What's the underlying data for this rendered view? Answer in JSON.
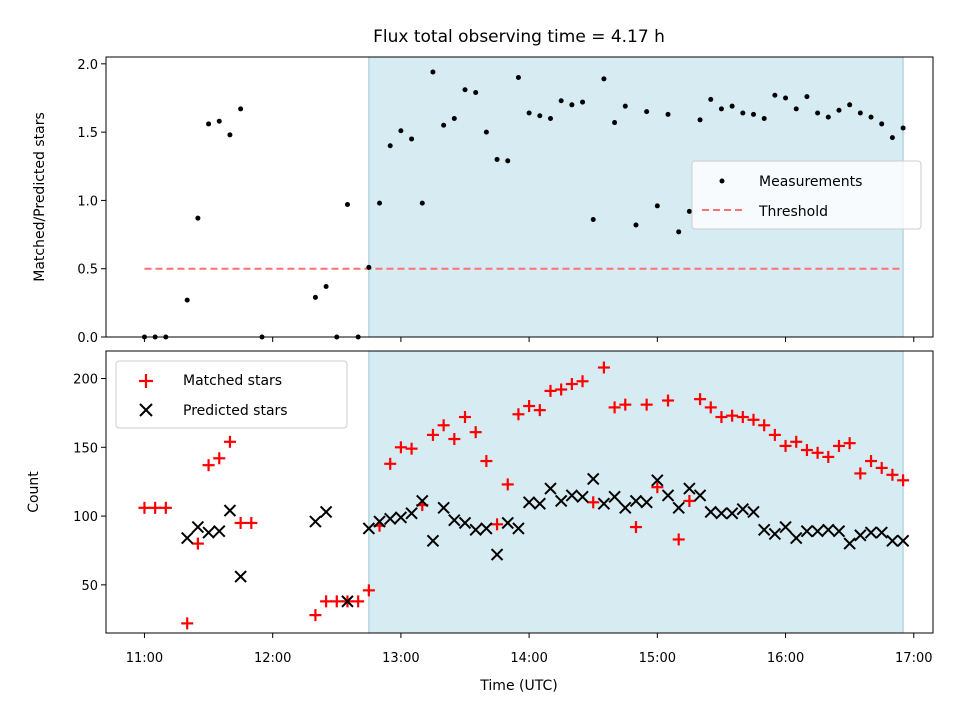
{
  "chart_data": [
    {
      "type": "scatter",
      "title": "Flux total observing time = 4.17 h",
      "xlabel": "",
      "ylabel": "Matched/Predicted stars",
      "xlim": [
        "10:42",
        "17:09"
      ],
      "ylim": [
        0,
        2.05
      ],
      "yticks": [
        0.0,
        0.5,
        1.0,
        1.5,
        2.0
      ],
      "ytick_labels": [
        "0.0",
        "0.5",
        "1.0",
        "1.5",
        "2.0"
      ],
      "legend_position": "center-right",
      "highlight_span": {
        "start": "12:45",
        "end": "16:55",
        "color": "#add8e6"
      },
      "series": [
        {
          "name": "Measurements",
          "marker": "dot",
          "color": "#000000",
          "x": [
            "11:00",
            "11:05",
            "11:10",
            "11:20",
            "11:25",
            "11:30",
            "11:35",
            "11:40",
            "11:45",
            "11:55",
            "12:20",
            "12:25",
            "12:30",
            "12:35",
            "12:40",
            "12:45",
            "12:50",
            "12:55",
            "13:00",
            "13:05",
            "13:10",
            "13:15",
            "13:20",
            "13:25",
            "13:30",
            "13:35",
            "13:40",
            "13:45",
            "13:50",
            "13:55",
            "14:00",
            "14:05",
            "14:10",
            "14:15",
            "14:20",
            "14:25",
            "14:30",
            "14:35",
            "14:40",
            "14:45",
            "14:50",
            "14:55",
            "15:00",
            "15:05",
            "15:10",
            "15:15",
            "15:20",
            "15:25",
            "15:30",
            "15:35",
            "15:40",
            "15:45",
            "15:50",
            "15:55",
            "16:00",
            "16:05",
            "16:10",
            "16:15",
            "16:20",
            "16:25",
            "16:30",
            "16:35",
            "16:40",
            "16:45",
            "16:50",
            "16:55"
          ],
          "y": [
            0.0,
            0.0,
            0.0,
            0.27,
            0.87,
            1.56,
            1.58,
            1.48,
            1.67,
            0.0,
            0.29,
            0.37,
            0.0,
            0.97,
            0.0,
            0.51,
            0.98,
            1.4,
            1.51,
            1.45,
            0.98,
            1.94,
            1.55,
            1.6,
            1.81,
            1.79,
            1.5,
            1.3,
            1.29,
            1.9,
            1.64,
            1.62,
            1.6,
            1.73,
            1.7,
            1.72,
            0.86,
            1.89,
            1.57,
            1.69,
            0.82,
            1.65,
            0.96,
            1.63,
            0.77,
            0.92,
            1.59,
            1.74,
            1.67,
            1.69,
            1.64,
            1.63,
            1.6,
            1.77,
            1.75,
            1.67,
            1.76,
            1.64,
            1.61,
            1.66,
            1.7,
            1.64,
            1.61,
            1.56,
            1.46,
            1.53
          ]
        },
        {
          "name": "Threshold",
          "type": "line",
          "style": "dashed",
          "color": "#ff7070",
          "x": [
            "11:00",
            "16:55"
          ],
          "y": [
            0.5,
            0.5
          ]
        }
      ]
    },
    {
      "type": "scatter",
      "title": "",
      "xlabel": "Time (UTC)",
      "ylabel": "Count",
      "xlim": [
        "10:42",
        "17:09"
      ],
      "ylim": [
        15,
        220
      ],
      "yticks": [
        50,
        100,
        150,
        200
      ],
      "ytick_labels": [
        "50",
        "100",
        "150",
        "200"
      ],
      "xticks": [
        "11:00",
        "12:00",
        "13:00",
        "14:00",
        "15:00",
        "16:00",
        "17:00"
      ],
      "xtick_labels": [
        "11:00",
        "12:00",
        "13:00",
        "14:00",
        "15:00",
        "16:00",
        "17:00"
      ],
      "legend_position": "top-left",
      "highlight_span": {
        "start": "12:45",
        "end": "16:55",
        "color": "#add8e6"
      },
      "series": [
        {
          "name": "Matched stars",
          "marker": "plus",
          "color": "#ff0000",
          "x": [
            "11:00",
            "11:05",
            "11:10",
            "11:20",
            "11:25",
            "11:30",
            "11:35",
            "11:40",
            "11:45",
            "11:50",
            "12:20",
            "12:25",
            "12:30",
            "12:35",
            "12:40",
            "12:45",
            "12:50",
            "12:55",
            "13:00",
            "13:05",
            "13:10",
            "13:15",
            "13:20",
            "13:25",
            "13:30",
            "13:35",
            "13:40",
            "13:45",
            "13:50",
            "13:55",
            "14:00",
            "14:05",
            "14:10",
            "14:15",
            "14:20",
            "14:25",
            "14:30",
            "14:35",
            "14:40",
            "14:45",
            "14:50",
            "14:55",
            "15:00",
            "15:05",
            "15:10",
            "15:15",
            "15:20",
            "15:25",
            "15:30",
            "15:35",
            "15:40",
            "15:45",
            "15:50",
            "15:55",
            "16:00",
            "16:05",
            "16:10",
            "16:15",
            "16:20",
            "16:25",
            "16:30",
            "16:35",
            "16:40",
            "16:45",
            "16:50",
            "16:55"
          ],
          "y": [
            106,
            106,
            106,
            22,
            80,
            137,
            142,
            154,
            95,
            95,
            28,
            38,
            38,
            38,
            38,
            46,
            93,
            138,
            150,
            149,
            108,
            159,
            166,
            156,
            172,
            161,
            140,
            94,
            123,
            174,
            180,
            177,
            191,
            192,
            196,
            198,
            110,
            208,
            179,
            181,
            92,
            181,
            121,
            184,
            83,
            111,
            185,
            179,
            172,
            173,
            172,
            170,
            166,
            159,
            151,
            154,
            148,
            146,
            143,
            151,
            153,
            131,
            140,
            135,
            130,
            126
          ]
        },
        {
          "name": "Predicted stars",
          "marker": "x",
          "color": "#000000",
          "x": [
            "11:20",
            "11:25",
            "11:30",
            "11:35",
            "11:40",
            "11:45",
            "12:20",
            "12:25",
            "12:35",
            "12:45",
            "12:50",
            "12:55",
            "13:00",
            "13:05",
            "13:10",
            "13:15",
            "13:20",
            "13:25",
            "13:30",
            "13:35",
            "13:40",
            "13:45",
            "13:50",
            "13:55",
            "14:00",
            "14:05",
            "14:10",
            "14:15",
            "14:20",
            "14:25",
            "14:30",
            "14:35",
            "14:40",
            "14:45",
            "14:50",
            "14:55",
            "15:00",
            "15:05",
            "15:10",
            "15:15",
            "15:20",
            "15:25",
            "15:30",
            "15:35",
            "15:40",
            "15:45",
            "15:50",
            "15:55",
            "16:00",
            "16:05",
            "16:10",
            "16:15",
            "16:20",
            "16:25",
            "16:30",
            "16:35",
            "16:40",
            "16:45",
            "16:50",
            "16:55"
          ],
          "y": [
            84,
            92,
            88,
            89,
            104,
            56,
            96,
            103,
            38,
            91,
            96,
            98,
            99,
            102,
            111,
            82,
            106,
            97,
            95,
            90,
            91,
            72,
            95,
            91,
            110,
            109,
            120,
            111,
            115,
            114,
            127,
            109,
            114,
            106,
            111,
            110,
            126,
            115,
            106,
            120,
            115,
            103,
            102,
            102,
            105,
            103,
            90,
            87,
            92,
            84,
            89,
            89,
            90,
            89,
            80,
            86,
            88,
            88,
            82,
            82
          ]
        }
      ]
    }
  ]
}
